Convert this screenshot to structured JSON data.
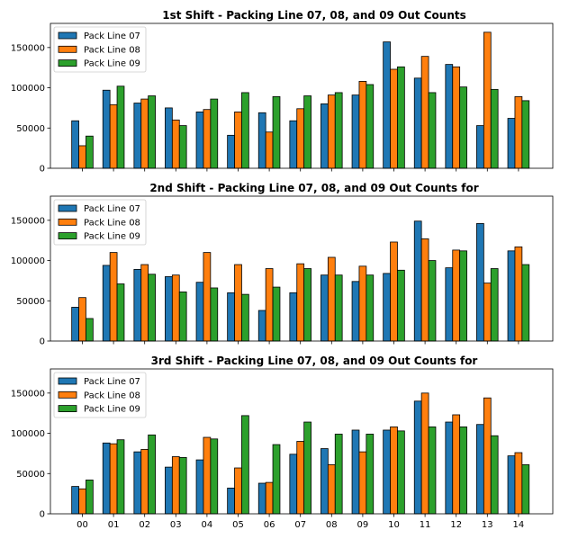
{
  "colors": {
    "Pack Line 07": "#1f77b4",
    "Pack Line 08": "#ff7f0e",
    "Pack Line 09": "#2ca02c"
  },
  "chart_data": [
    {
      "type": "bar",
      "title": "1st Shift - Packing Line 07, 08, and 09 Out Counts",
      "categories": [
        "00",
        "01",
        "02",
        "03",
        "04",
        "05",
        "06",
        "07",
        "08",
        "09",
        "10",
        "11",
        "12",
        "13",
        "14"
      ],
      "ylim": [
        0,
        180000
      ],
      "yticks": [
        0,
        50000,
        100000,
        150000
      ],
      "legend": "top-left",
      "series": [
        {
          "name": "Pack Line 07",
          "values": [
            59000,
            97000,
            81000,
            75000,
            70000,
            41000,
            69000,
            59000,
            80000,
            91000,
            157000,
            112000,
            129000,
            53000,
            62000
          ]
        },
        {
          "name": "Pack Line 08",
          "values": [
            28000,
            79000,
            86000,
            60000,
            73000,
            70000,
            45000,
            74000,
            91000,
            108000,
            123000,
            139000,
            126000,
            169000,
            89000
          ]
        },
        {
          "name": "Pack Line 09",
          "values": [
            40000,
            102000,
            90000,
            53000,
            86000,
            94000,
            89000,
            90000,
            94000,
            104000,
            126000,
            94000,
            101000,
            98000,
            84000
          ]
        }
      ]
    },
    {
      "type": "bar",
      "title": "2nd Shift - Packing Line 07, 08, and 09 Out Counts for",
      "categories": [
        "00",
        "01",
        "02",
        "03",
        "04",
        "05",
        "06",
        "07",
        "08",
        "09",
        "10",
        "11",
        "12",
        "13",
        "14"
      ],
      "ylim": [
        0,
        180000
      ],
      "yticks": [
        0,
        50000,
        100000,
        150000
      ],
      "legend": "top-left",
      "series": [
        {
          "name": "Pack Line 07",
          "values": [
            42000,
            94000,
            89000,
            80000,
            73000,
            60000,
            38000,
            60000,
            82000,
            74000,
            84000,
            149000,
            91000,
            146000,
            112000
          ]
        },
        {
          "name": "Pack Line 08",
          "values": [
            54000,
            110000,
            95000,
            82000,
            110000,
            95000,
            90000,
            96000,
            104000,
            93000,
            123000,
            127000,
            113000,
            72000,
            117000
          ]
        },
        {
          "name": "Pack Line 09",
          "values": [
            28000,
            71000,
            83000,
            61000,
            66000,
            58000,
            67000,
            90000,
            82000,
            82000,
            88000,
            100000,
            112000,
            90000,
            95000
          ]
        }
      ]
    },
    {
      "type": "bar",
      "title": "3rd Shift - Packing Line 07, 08, and 09 Out Counts for",
      "categories": [
        "00",
        "01",
        "02",
        "03",
        "04",
        "05",
        "06",
        "07",
        "08",
        "09",
        "10",
        "11",
        "12",
        "13",
        "14"
      ],
      "ylim": [
        0,
        180000
      ],
      "yticks": [
        0,
        50000,
        100000,
        150000
      ],
      "legend": "top-left",
      "series": [
        {
          "name": "Pack Line 07",
          "values": [
            34000,
            88000,
            77000,
            58000,
            67000,
            32000,
            38000,
            74000,
            81000,
            104000,
            104000,
            140000,
            114000,
            111000,
            72000
          ]
        },
        {
          "name": "Pack Line 08",
          "values": [
            31000,
            87000,
            80000,
            71000,
            95000,
            57000,
            39000,
            90000,
            61000,
            77000,
            108000,
            150000,
            123000,
            144000,
            76000
          ]
        },
        {
          "name": "Pack Line 09",
          "values": [
            42000,
            92000,
            98000,
            70000,
            93000,
            122000,
            86000,
            114000,
            99000,
            99000,
            103000,
            108000,
            108000,
            97000,
            61000
          ]
        }
      ]
    }
  ]
}
